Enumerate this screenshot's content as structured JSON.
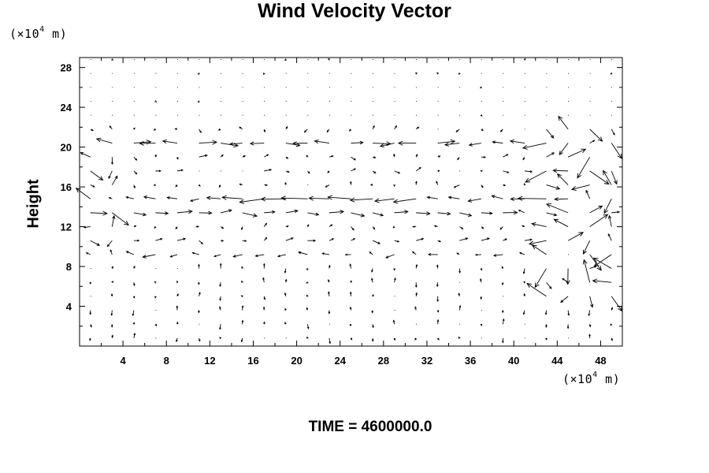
{
  "chart_data": {
    "type": "quiver",
    "title": "Wind Velocity Vector",
    "ylabel": "Height",
    "y_unit": "(×10^4 m)",
    "x_unit": "(×10^4 m)",
    "xlim": [
      0,
      50
    ],
    "ylim": [
      0,
      29
    ],
    "x_ticks": [
      4,
      8,
      12,
      16,
      20,
      24,
      28,
      32,
      36,
      40,
      44,
      48
    ],
    "y_ticks": [
      4,
      8,
      12,
      16,
      20,
      24,
      28
    ],
    "grid": false,
    "time_label": "TIME = 4600000.0"
  },
  "labels": {
    "unit_prefix": "(×10",
    "unit_exp": "4",
    "unit_suffix": " m)"
  }
}
